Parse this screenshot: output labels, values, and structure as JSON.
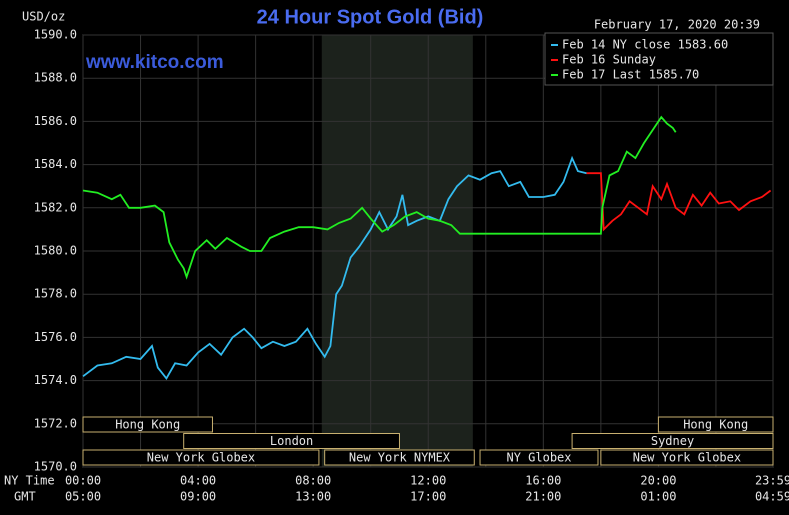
{
  "chart_data": {
    "type": "line",
    "title": "24 Hour Spot Gold (Bid)",
    "y_unit_label": "USD/oz",
    "timestamp": "February 17, 2020 20:39",
    "watermark": "www.kitco.com",
    "x_axis_label": "NY Time",
    "x2_axis_label": "GMT",
    "xlim": [
      0,
      23.983
    ],
    "xticks": [
      {
        "value": 0,
        "label": "00:00"
      },
      {
        "value": 4,
        "label": "04:00"
      },
      {
        "value": 8,
        "label": "08:00"
      },
      {
        "value": 12,
        "label": "12:00"
      },
      {
        "value": 16,
        "label": "16:00"
      },
      {
        "value": 20,
        "label": "20:00"
      },
      {
        "value": 23.983,
        "label": "23:59"
      }
    ],
    "gmt_labels": [
      "05:00",
      "09:00",
      "13:00",
      "17:00",
      "21:00",
      "01:00",
      "04:59"
    ],
    "x_minor_grid": [
      2,
      6,
      10,
      14,
      18,
      22
    ],
    "ylim": [
      1570,
      1590
    ],
    "yticks": [
      {
        "value": 1570,
        "label": "1570.0"
      },
      {
        "value": 1572,
        "label": "1572.0"
      },
      {
        "value": 1574,
        "label": "1574.0"
      },
      {
        "value": 1576,
        "label": "1576.0"
      },
      {
        "value": 1578,
        "label": "1578.0"
      },
      {
        "value": 1580,
        "label": "1580.0"
      },
      {
        "value": 1582,
        "label": "1582.0"
      },
      {
        "value": 1584,
        "label": "1584.0"
      },
      {
        "value": 1586,
        "label": "1586.0"
      },
      {
        "value": 1588,
        "label": "1588.0"
      },
      {
        "value": 1590,
        "label": "1590.0"
      }
    ],
    "grid": true,
    "shaded_region": [
      8.3,
      13.55
    ],
    "sessions": [
      {
        "label": "Hong Kong",
        "start": 0,
        "end": 4.5,
        "row": 0
      },
      {
        "label": "Hong Kong",
        "start": 20.0,
        "end": 23.983,
        "row": 0
      },
      {
        "label": "London",
        "start": 3.5,
        "end": 11.0,
        "row": 1
      },
      {
        "label": "Sydney",
        "start": 17.0,
        "end": 23.983,
        "row": 1
      },
      {
        "label": "New York Globex",
        "start": 0,
        "end": 8.2,
        "row": 2
      },
      {
        "label": "New York NYMEX",
        "start": 8.4,
        "end": 13.6,
        "row": 2
      },
      {
        "label": "NY Globex",
        "start": 13.8,
        "end": 17.9,
        "row": 2
      },
      {
        "label": "New York Globex",
        "start": 18.0,
        "end": 23.983,
        "row": 2
      }
    ],
    "series": [
      {
        "name": "Feb 14 NY close 1583.60",
        "color": "#33bbee",
        "x": [
          0,
          0.5,
          1.0,
          1.5,
          2.0,
          2.4,
          2.6,
          2.9,
          3.2,
          3.6,
          4.0,
          4.4,
          4.8,
          5.2,
          5.6,
          5.9,
          6.2,
          6.6,
          7.0,
          7.4,
          7.8,
          8.1,
          8.4,
          8.6,
          8.8,
          9.0,
          9.3,
          9.6,
          10.0,
          10.3,
          10.6,
          10.9,
          11.1,
          11.3,
          11.6,
          12.0,
          12.4,
          12.7,
          13.0,
          13.4,
          13.8,
          14.2,
          14.5,
          14.8,
          15.2,
          15.5,
          16.0,
          16.4,
          16.7,
          17.0,
          17.2,
          17.5
        ],
        "values": [
          1574.2,
          1574.7,
          1574.8,
          1575.1,
          1575.0,
          1575.6,
          1574.6,
          1574.1,
          1574.8,
          1574.7,
          1575.3,
          1575.7,
          1575.2,
          1576.0,
          1576.4,
          1576.0,
          1575.5,
          1575.8,
          1575.6,
          1575.8,
          1576.4,
          1575.7,
          1575.1,
          1575.6,
          1578.0,
          1578.4,
          1579.7,
          1580.2,
          1581.0,
          1581.8,
          1581.0,
          1581.6,
          1582.6,
          1581.2,
          1581.4,
          1581.6,
          1581.4,
          1582.4,
          1583.0,
          1583.5,
          1583.3,
          1583.6,
          1583.7,
          1583.0,
          1583.2,
          1582.5,
          1582.5,
          1582.6,
          1583.2,
          1584.3,
          1583.7,
          1583.6
        ]
      },
      {
        "name": "Feb 16 Sunday",
        "color": "#ff1111",
        "x": [
          17.5,
          18.0,
          18.1,
          18.4,
          18.7,
          19.0,
          19.3,
          19.6,
          19.8,
          20.1,
          20.3,
          20.6,
          20.9,
          21.2,
          21.5,
          21.8,
          22.1,
          22.5,
          22.8,
          23.2,
          23.6,
          23.9
        ],
        "values": [
          1583.6,
          1583.6,
          1581.0,
          1581.4,
          1581.7,
          1582.3,
          1582.0,
          1581.7,
          1583.0,
          1582.4,
          1583.1,
          1582.0,
          1581.7,
          1582.6,
          1582.1,
          1582.7,
          1582.2,
          1582.3,
          1581.9,
          1582.3,
          1582.5,
          1582.8
        ]
      },
      {
        "name": "Feb 17 Last 1585.70",
        "color": "#22ee22",
        "x": [
          0,
          0.5,
          1,
          1.3,
          1.6,
          2.0,
          2.5,
          2.8,
          3.0,
          3.3,
          3.5,
          3.6,
          3.9,
          4.3,
          4.6,
          5.0,
          5.5,
          5.8,
          6.2,
          6.5,
          7.0,
          7.5,
          8.0,
          8.5,
          8.9,
          9.3,
          9.7,
          10.0,
          10.4,
          10.8,
          11.2,
          11.6,
          12.0,
          12.4,
          12.8,
          13.1,
          13.5,
          18.0,
          18.05,
          18.3,
          18.6,
          18.9,
          19.2,
          19.5,
          19.8,
          20.1,
          20.3,
          20.5,
          20.6
        ],
        "values": [
          1582.8,
          1582.7,
          1582.4,
          1582.6,
          1582.0,
          1582.0,
          1582.1,
          1581.8,
          1580.4,
          1579.6,
          1579.2,
          1578.8,
          1580.0,
          1580.5,
          1580.1,
          1580.6,
          1580.2,
          1580.0,
          1580.0,
          1580.6,
          1580.9,
          1581.1,
          1581.1,
          1581.0,
          1581.3,
          1581.5,
          1582.0,
          1581.5,
          1580.9,
          1581.2,
          1581.6,
          1581.8,
          1581.5,
          1581.4,
          1581.2,
          1580.8,
          1580.8,
          1580.8,
          1582.0,
          1583.5,
          1583.7,
          1584.6,
          1584.3,
          1585.0,
          1585.6,
          1586.2,
          1585.9,
          1585.7,
          1585.5
        ]
      }
    ]
  }
}
